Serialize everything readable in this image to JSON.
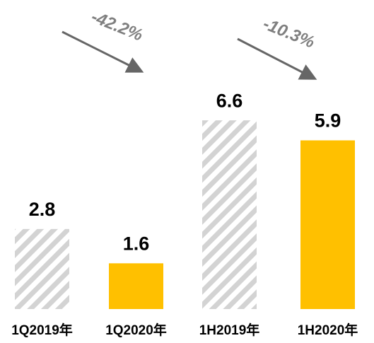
{
  "chart_data": {
    "type": "bar",
    "categories": [
      "1Q2019年",
      "1Q2020年",
      "1H2019年",
      "1H2020年"
    ],
    "values": [
      2.8,
      1.6,
      6.6,
      5.9
    ],
    "bar_styles": [
      "hatched",
      "solid",
      "hatched",
      "solid"
    ],
    "color": "#FFC000",
    "hatch_color": "#d3d3d3",
    "ylim": [
      0,
      7
    ],
    "annotations": [
      {
        "text": "-42.2%"
      },
      {
        "text": "-10.3%"
      }
    ]
  }
}
